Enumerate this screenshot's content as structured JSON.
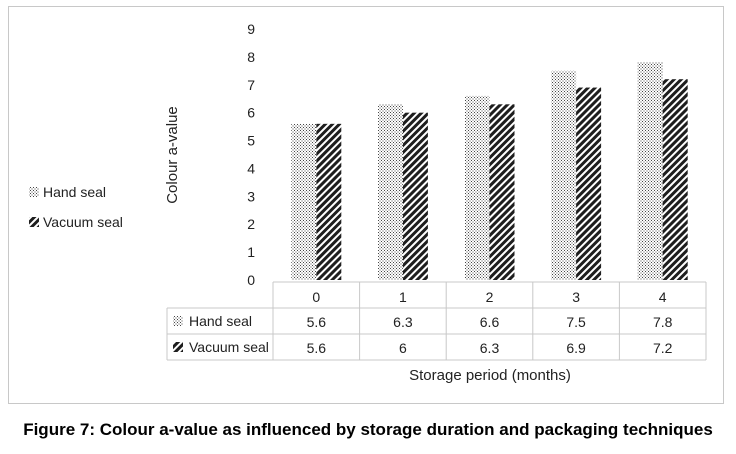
{
  "chart_data": {
    "type": "bar",
    "title": "",
    "xlabel": "Storage period (months)",
    "ylabel": "Colour a-value",
    "ylim": [
      0,
      9
    ],
    "yticks": [
      0,
      1,
      2,
      3,
      4,
      5,
      6,
      7,
      8,
      9
    ],
    "categories": [
      "0",
      "1",
      "2",
      "3",
      "4"
    ],
    "series": [
      {
        "name": "Hand seal",
        "values": [
          5.6,
          6.3,
          6.6,
          7.5,
          7.8
        ],
        "labels": [
          "5.6",
          "6.3",
          "6.6",
          "7.5",
          "7.8"
        ],
        "pattern": "dotted"
      },
      {
        "name": "Vacuum seal",
        "values": [
          5.6,
          6.0,
          6.3,
          6.9,
          7.2
        ],
        "labels": [
          "5.6",
          "6",
          "6.3",
          "6.9",
          "7.2"
        ],
        "pattern": "diagonal-hatch"
      }
    ],
    "legend_position": "left",
    "grid": false,
    "data_table": true
  },
  "caption": "Figure 7: Colour a-value as influenced by storage duration and packaging techniques",
  "colors": {
    "ink": "#222222",
    "border": "#c8c8c8",
    "table_line": "#c8c8c8"
  }
}
